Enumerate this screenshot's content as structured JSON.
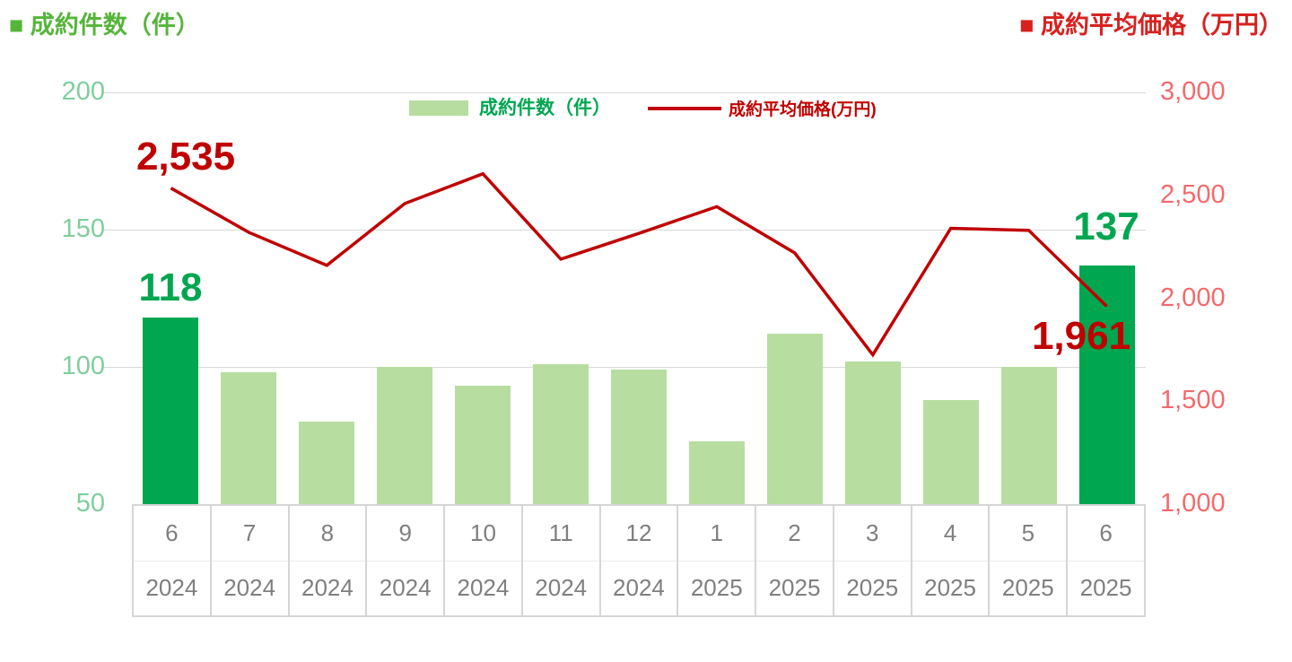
{
  "header": {
    "left_title": "■ 成約件数（件）",
    "right_title": "■ 成約平均価格（万円）"
  },
  "legend": {
    "bars_label": "成約件数（件）",
    "line_label": "成約平均価格(万円)"
  },
  "chart_data": {
    "type": "combo-bar-line",
    "title": "",
    "categories": [
      {
        "month": "6",
        "year": "2024"
      },
      {
        "month": "7",
        "year": "2024"
      },
      {
        "month": "8",
        "year": "2024"
      },
      {
        "month": "9",
        "year": "2024"
      },
      {
        "month": "10",
        "year": "2024"
      },
      {
        "month": "11",
        "year": "2024"
      },
      {
        "month": "12",
        "year": "2024"
      },
      {
        "month": "1",
        "year": "2025"
      },
      {
        "month": "2",
        "year": "2025"
      },
      {
        "month": "3",
        "year": "2025"
      },
      {
        "month": "4",
        "year": "2025"
      },
      {
        "month": "5",
        "year": "2025"
      },
      {
        "month": "6",
        "year": "2025"
      }
    ],
    "series": [
      {
        "name": "成約件数（件）",
        "type": "bar",
        "axis": "left",
        "values": [
          118,
          98,
          80,
          100,
          93,
          101,
          99,
          73,
          112,
          102,
          88,
          100,
          137
        ],
        "highlight_indices": [
          0,
          12
        ]
      },
      {
        "name": "成約平均価格(万円)",
        "type": "line",
        "axis": "right",
        "values": [
          2535,
          2320,
          2160,
          2460,
          2605,
          2190,
          2315,
          2445,
          2220,
          1725,
          2340,
          2330,
          1961
        ]
      }
    ],
    "left_axis": {
      "min": 50,
      "max": 200,
      "ticks": [
        "200",
        "150",
        "100",
        "50"
      ]
    },
    "right_axis": {
      "min": 1000,
      "max": 3000,
      "ticks": [
        "3,000",
        "2,500",
        "2,000",
        "1,500",
        "1,000"
      ]
    },
    "grid": true,
    "legend_position": "top-center",
    "data_labels": {
      "line_first": "2,535",
      "bar_first": "118",
      "bar_last": "137",
      "line_last": "1,961"
    }
  },
  "colors": {
    "bar_light": "#B7DDA0",
    "bar_dark": "#00A650",
    "line": "#C00000",
    "left_tick": "#7FCE9C",
    "right_tick": "#F5696B",
    "title_green": "#55B53A",
    "title_red": "#D7211E",
    "grid": "#D9D9D9",
    "table_text": "#7F7F7F"
  }
}
